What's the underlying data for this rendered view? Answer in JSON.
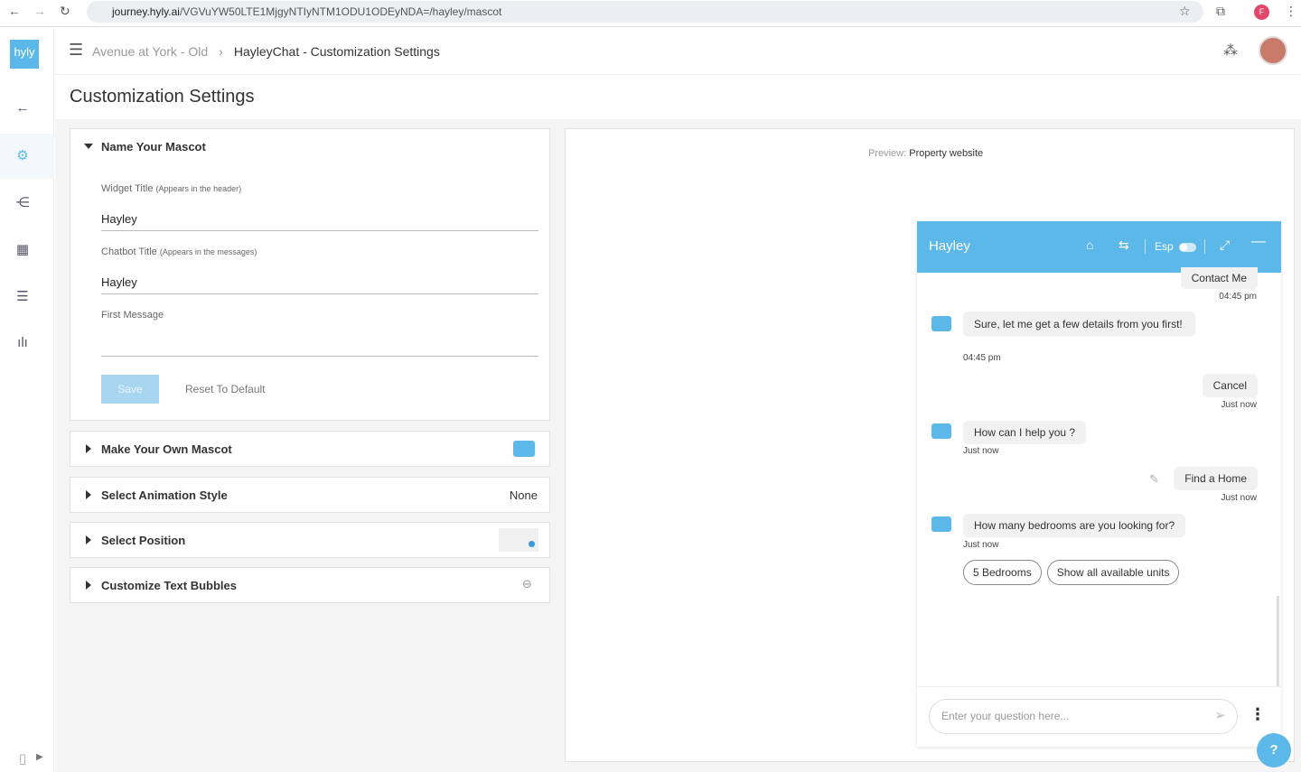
{
  "browser": {
    "url_domain": "journey.hyly.ai",
    "url_path": "/VGVuYW50LTE1MjgyNTIyNTM1ODU1ODEyNDA=/hayley/mascot",
    "profile": "F"
  },
  "sidebar": {
    "logo": "hyly"
  },
  "header": {
    "breadcrumb_parent": "Avenue at York - Old",
    "breadcrumb_current": "HayleyChat - Customization Settings"
  },
  "page_title": "Customization Settings",
  "mascot": {
    "section": "Name Your Mascot",
    "widget_title_label": "Widget Title",
    "widget_title_hint": "(Appears in the header)",
    "widget_title_value": "Hayley",
    "chatbot_title_label": "Chatbot Title",
    "chatbot_title_hint": "(Appears in the messages)",
    "chatbot_title_value": "Hayley",
    "first_message_label": "First Message",
    "first_message_value": "",
    "save": "Save",
    "reset": "Reset To Default"
  },
  "accordions": [
    {
      "label": "Make Your Own Mascot"
    },
    {
      "label": "Select Animation Style",
      "value": "None"
    },
    {
      "label": "Select Position"
    },
    {
      "label": "Customize Text Bubbles"
    }
  ],
  "preview": {
    "label": "Preview:",
    "value": "Property website"
  },
  "chat": {
    "title": "Hayley",
    "lang": "Esp",
    "input_placeholder": "Enter your question here...",
    "messages": [
      {
        "from": "user",
        "text": "Contact Me",
        "time": "04:45 pm"
      },
      {
        "from": "bot",
        "text": "Sure, let me get a few details from you first!",
        "time": "04:45 pm"
      },
      {
        "from": "user",
        "text": "Cancel",
        "time": "Just now"
      },
      {
        "from": "bot",
        "text": "How can I help you ?",
        "time": "Just now"
      },
      {
        "from": "user",
        "text": "Find a Home",
        "time": "Just now"
      },
      {
        "from": "bot",
        "text": "How many bedrooms are you looking for?",
        "time": "Just now"
      }
    ],
    "options": [
      "5 Bedrooms",
      "Show all available units"
    ]
  },
  "help": "?",
  "colors": {
    "accent": "#5bb8e8"
  }
}
